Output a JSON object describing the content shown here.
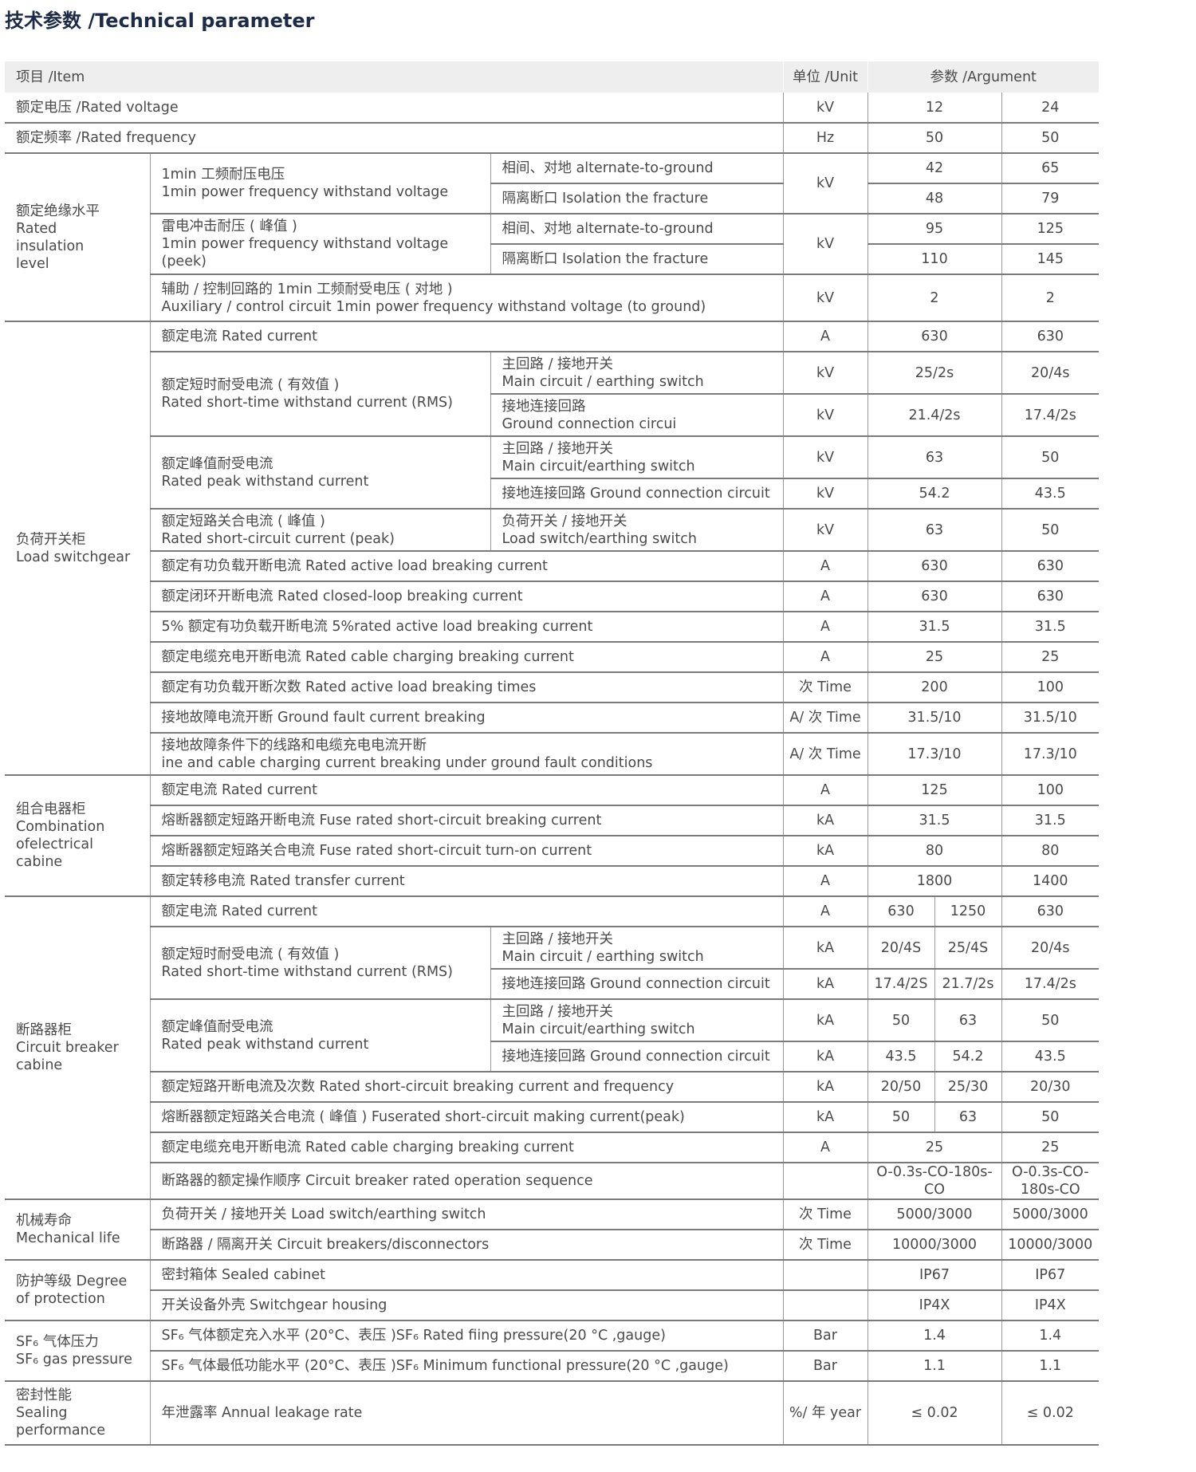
{
  "title": "技术参数 /Technical parameter",
  "header": [
    "项目 /Item",
    "单位 /Unit",
    "参数 /Argument"
  ],
  "rows": [
    [
      "额定电压 /Rated voltage",
      "kV",
      "12",
      "24"
    ],
    [
      "额定频率 /Rated frequency",
      "Hz",
      "50",
      "50"
    ],
    [
      "额定绝缘水平\nRated\ninsulation\nlevel",
      "1min 工频耐压电压\n1min power frequency withstand voltage",
      "相间、对地 alternate-to-ground",
      "kV",
      "42",
      "65"
    ],
    [
      "隔离断口 Isolation the fracture",
      "48",
      "79"
    ],
    [
      "雷电冲击耐压 ( 峰值 )\n1min power frequency withstand voltage (peek)",
      "相间、对地 alternate-to-ground",
      "kV",
      "95",
      "125"
    ],
    [
      "隔离断口 Isolation the fracture",
      "110",
      "145"
    ],
    [
      "辅助 / 控制回路的 1min 工频耐受电压 ( 对地 )\nAuxiliary / control circuit 1min power frequency withstand voltage (to ground)",
      "kV",
      "2",
      "2"
    ],
    [
      "负荷开关柜\nLoad switchgear",
      "额定电流 Rated current",
      "A",
      "630",
      "630"
    ],
    [
      "额定短时耐受电流 ( 有效值 )\nRated short-time withstand current (RMS)",
      "主回路 / 接地开关\nMain circuit / earthing switch",
      "kV",
      "25/2s",
      "20/4s"
    ],
    [
      "接地连接回路\nGround connection circui",
      "kV",
      "21.4/2s",
      "17.4/2s"
    ],
    [
      "额定峰值耐受电流\nRated peak withstand current",
      "主回路 / 接地开关\nMain circuit/earthing switch",
      "kV",
      "63",
      "50"
    ],
    [
      "接地连接回路 Ground connection circuit",
      "kV",
      "54.2",
      "43.5"
    ],
    [
      "额定短路关合电流 ( 峰值 )\nRated short-circuit current (peak)",
      "负荷开关 / 接地开关\nLoad switch/earthing switch",
      "kV",
      "63",
      "50"
    ],
    [
      "额定有功负载开断电流 Rated active load breaking current",
      "A",
      "630",
      "630"
    ],
    [
      "额定闭环开断电流 Rated closed-loop breaking current",
      "A",
      "630",
      "630"
    ],
    [
      "5% 额定有功负载开断电流 5%rated active load breaking current",
      "A",
      "31.5",
      "31.5"
    ],
    [
      "额定电缆充电开断电流 Rated cable charging breaking current",
      "A",
      "25",
      "25"
    ],
    [
      "额定有功负载开断次数 Rated active load breaking times",
      "次 Time",
      "200",
      "100"
    ],
    [
      "接地故障电流开断 Ground fault current breaking",
      "A/ 次 Time",
      "31.5/10",
      "31.5/10"
    ],
    [
      "接地故障条件下的线路和电缆充电电流开断\nine and cable charging current breaking under ground fault conditions",
      "A/ 次 Time",
      "17.3/10",
      "17.3/10"
    ],
    [
      "组合电器柜\nCombination\nofelectrical cabine",
      "额定电流 Rated current",
      "A",
      "125",
      "100"
    ],
    [
      "熔断器额定短路开断电流 Fuse rated short-circuit breaking current",
      "kA",
      "31.5",
      "31.5"
    ],
    [
      "熔断器额定短路关合电流 Fuse rated short-circuit turn-on current",
      "kA",
      "80",
      "80"
    ],
    [
      "额定转移电流 Rated transfer current",
      "A",
      "1800",
      "1400"
    ],
    [
      "断路器柜\nCircuit breaker\ncabine",
      "额定电流 Rated current",
      "A",
      "630",
      "1250",
      "630"
    ],
    [
      "额定短时耐受电流 ( 有效值 )\nRated short-time withstand current (RMS)",
      "主回路 / 接地开关\nMain circuit / earthing switch",
      "kA",
      "20/4S",
      "25/4S",
      "20/4s"
    ],
    [
      "接地连接回路 Ground connection circuit",
      "kA",
      "17.4/2S",
      "21.7/2s",
      "17.4/2s"
    ],
    [
      "额定峰值耐受电流\nRated peak withstand current",
      "主回路 / 接地开关\nMain circuit/earthing switch",
      "kA",
      "50",
      "63",
      "50"
    ],
    [
      "接地连接回路 Ground connection circuit",
      "kA",
      "43.5",
      "54.2",
      "43.5"
    ],
    [
      "额定短路开断电流及次数 Rated short-circuit breaking current and frequency",
      "kA",
      "20/50",
      "25/30",
      "20/30"
    ],
    [
      "熔断器额定短路关合电流 ( 峰值 ) Fuserated short-circuit making current(peak)",
      "kA",
      "50",
      "63",
      "50"
    ],
    [
      "额定电缆充电开断电流 Rated cable charging breaking current",
      "A",
      "25",
      "25"
    ],
    [
      "断路器的额定操作顺序 Circuit breaker rated operation sequence",
      "",
      "O-0.3s-CO-180s-\nCO",
      "O-0.3s-CO-\n180s-CO"
    ],
    [
      "机械寿命\nMechanical life",
      "负荷开关 / 接地开关 Load switch/earthing switch",
      "次 Time",
      "5000/3000",
      "5000/3000"
    ],
    [
      "断路器 / 隔离开关 Circuit breakers/disconnectors",
      "次 Time",
      "10000/3000",
      "10000/3000"
    ],
    [
      "防护等级 Degree\nof protection",
      "密封箱体 Sealed cabinet",
      "",
      "IP67",
      "IP67"
    ],
    [
      "开关设备外壳 Switchgear housing",
      "",
      "IP4X",
      "IP4X"
    ],
    [
      "SF₆ 气体压力\nSF₆ gas pressure",
      "SF₆ 气体额定充入水平 (20°C、表压 )SF₆ Rated fiing pressure(20 °C ,gauge)",
      "Bar",
      "1.4",
      "1.4"
    ],
    [
      "SF₆ 气体最低功能水平 (20°C、表压 )SF₆ Minimum functional pressure(20 °C ,gauge)",
      "Bar",
      "1.1",
      "1.1"
    ],
    [
      "密封性能\nSealing\nperformance",
      "年泄露率 Annual leakage rate",
      "%/ 年 year",
      "≤ 0.02",
      "≤ 0.02"
    ]
  ]
}
